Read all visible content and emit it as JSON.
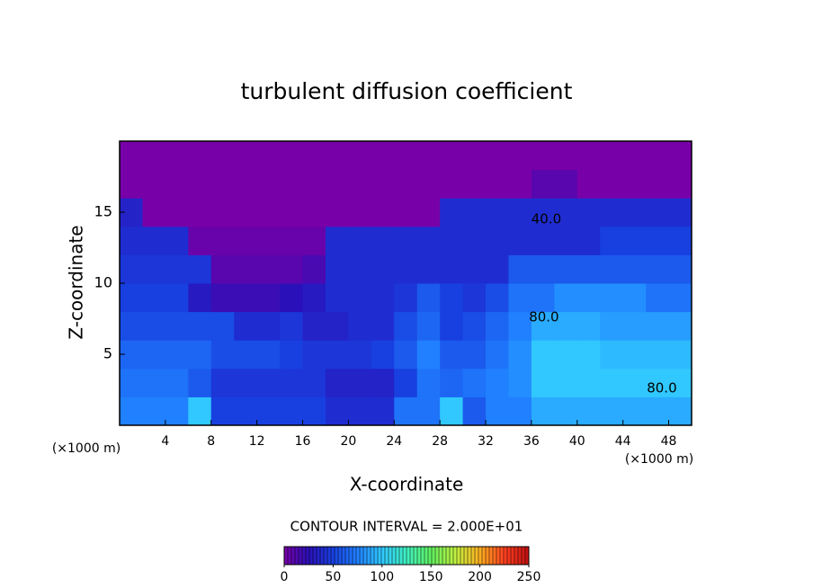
{
  "chart_data": {
    "type": "contour",
    "title": "turbulent diffusion coefficient",
    "x_label": "X-coordinate",
    "y_label": "Z-coordinate",
    "x_unit": "(×1000 m)",
    "subtitle": "CONTOUR INTERVAL = 2.000E+01",
    "xlim": [
      0,
      50
    ],
    "ylim": [
      0,
      20
    ],
    "xticks": [
      4,
      8,
      12,
      16,
      20,
      24,
      28,
      32,
      36,
      40,
      44,
      48
    ],
    "yticks": [
      5,
      10,
      15
    ],
    "x": [
      1,
      3,
      5,
      7,
      9,
      11,
      13,
      15,
      17,
      19,
      21,
      23,
      25,
      27,
      29,
      31,
      33,
      35,
      37,
      39,
      41,
      43,
      45,
      47,
      49
    ],
    "y": [
      1,
      3,
      5,
      7,
      9,
      11,
      13,
      15,
      17,
      19
    ],
    "z": [
      [
        75,
        75,
        75,
        100,
        50,
        50,
        50,
        50,
        50,
        40,
        40,
        40,
        70,
        70,
        100,
        60,
        75,
        75,
        90,
        90,
        90,
        90,
        90,
        90,
        90
      ],
      [
        70,
        70,
        70,
        60,
        45,
        45,
        45,
        45,
        45,
        35,
        35,
        35,
        50,
        70,
        65,
        70,
        75,
        80,
        100,
        100,
        100,
        100,
        100,
        100,
        100
      ],
      [
        65,
        65,
        65,
        65,
        55,
        55,
        55,
        50,
        45,
        45,
        45,
        50,
        60,
        75,
        60,
        60,
        70,
        80,
        100,
        100,
        100,
        95,
        95,
        95,
        95
      ],
      [
        55,
        55,
        55,
        55,
        55,
        40,
        40,
        45,
        35,
        35,
        40,
        40,
        55,
        65,
        50,
        55,
        65,
        75,
        90,
        90,
        90,
        85,
        85,
        85,
        85
      ],
      [
        50,
        50,
        50,
        30,
        20,
        20,
        20,
        25,
        30,
        40,
        40,
        40,
        45,
        60,
        50,
        45,
        55,
        70,
        70,
        80,
        80,
        80,
        80,
        70,
        70
      ],
      [
        45,
        45,
        45,
        45,
        10,
        10,
        10,
        10,
        15,
        40,
        40,
        40,
        40,
        40,
        40,
        40,
        40,
        60,
        60,
        60,
        60,
        60,
        60,
        60,
        60
      ],
      [
        40,
        40,
        40,
        5,
        5,
        5,
        5,
        5,
        5,
        40,
        40,
        40,
        40,
        40,
        40,
        40,
        40,
        40,
        40,
        40,
        40,
        50,
        50,
        50,
        50
      ],
      [
        35,
        0,
        0,
        0,
        0,
        0,
        0,
        0,
        0,
        0,
        0,
        0,
        0,
        0,
        40,
        40,
        40,
        40,
        40,
        40,
        40,
        40,
        40,
        40,
        40
      ],
      [
        0,
        0,
        0,
        0,
        0,
        0,
        0,
        0,
        0,
        0,
        0,
        0,
        0,
        0,
        0,
        0,
        0,
        0,
        10,
        10,
        0,
        0,
        0,
        0,
        0
      ],
      [
        0,
        0,
        0,
        0,
        0,
        0,
        0,
        0,
        0,
        0,
        0,
        0,
        0,
        0,
        0,
        0,
        0,
        0,
        0,
        0,
        0,
        0,
        0,
        0,
        0
      ]
    ],
    "annotations": [
      {
        "text": "40.0",
        "x": 37.3,
        "y": 14.5
      },
      {
        "text": "80.0",
        "x": 37.1,
        "y": 7.6
      },
      {
        "text": "80.0",
        "x": 47.4,
        "y": 2.6
      }
    ],
    "clim": [
      0,
      250
    ],
    "colorbar_ticks": [
      0,
      50,
      100,
      150,
      200,
      250
    ],
    "colormap": [
      "#7800a8",
      "#2a10b8",
      "#1840e0",
      "#2080ff",
      "#30c8ff",
      "#40f0c0",
      "#60f060",
      "#c0f040",
      "#ffb020",
      "#ff4020",
      "#c01010"
    ]
  }
}
